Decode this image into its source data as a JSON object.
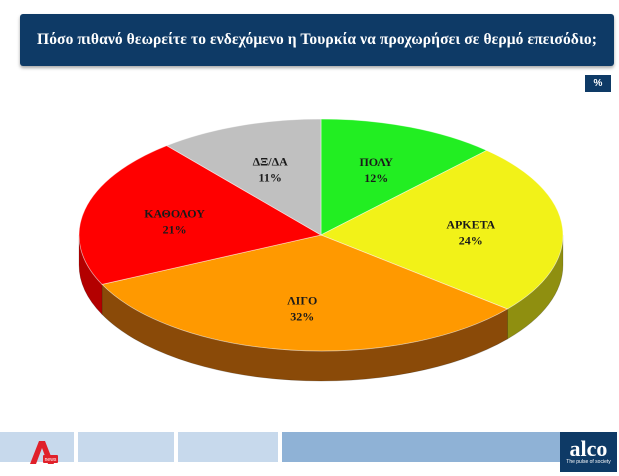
{
  "header": {
    "title": "Πόσο πιθανό θεωρείτε το ενδεχόμενο η Τουρκία να προχωρήσει σε θερμό επεισόδιο;"
  },
  "unit_badge": "%",
  "chart_data": {
    "type": "pie",
    "title": "Πόσο πιθανό θεωρείτε το ενδεχόμενο η Τουρκία να προχωρήσει σε θερμό επεισόδιο;",
    "unit": "%",
    "slices": [
      {
        "label": "ΠΟΛΥ",
        "value": 12,
        "display": "12%",
        "color": "#22ee22",
        "side": "#14a014"
      },
      {
        "label": "ΑΡΚΕΤΑ",
        "value": 24,
        "display": "24%",
        "color": "#f2f218",
        "side": "#8f8f10"
      },
      {
        "label": "ΛΙΓΟ",
        "value": 32,
        "display": "32%",
        "color": "#ff9900",
        "side": "#8a4a08"
      },
      {
        "label": "ΚΑΘΟΛΟΥ",
        "value": 21,
        "display": "21%",
        "color": "#ff0000",
        "side": "#b30000"
      },
      {
        "label": "ΔΞ/ΔΑ",
        "value": 11,
        "display": "11%",
        "color": "#c0c0c0",
        "side": "#808080"
      }
    ]
  },
  "footer": {
    "left_logo": "alpha-news-logo",
    "right_logo": {
      "name": "alco",
      "tagline": "The pulse of society"
    }
  }
}
